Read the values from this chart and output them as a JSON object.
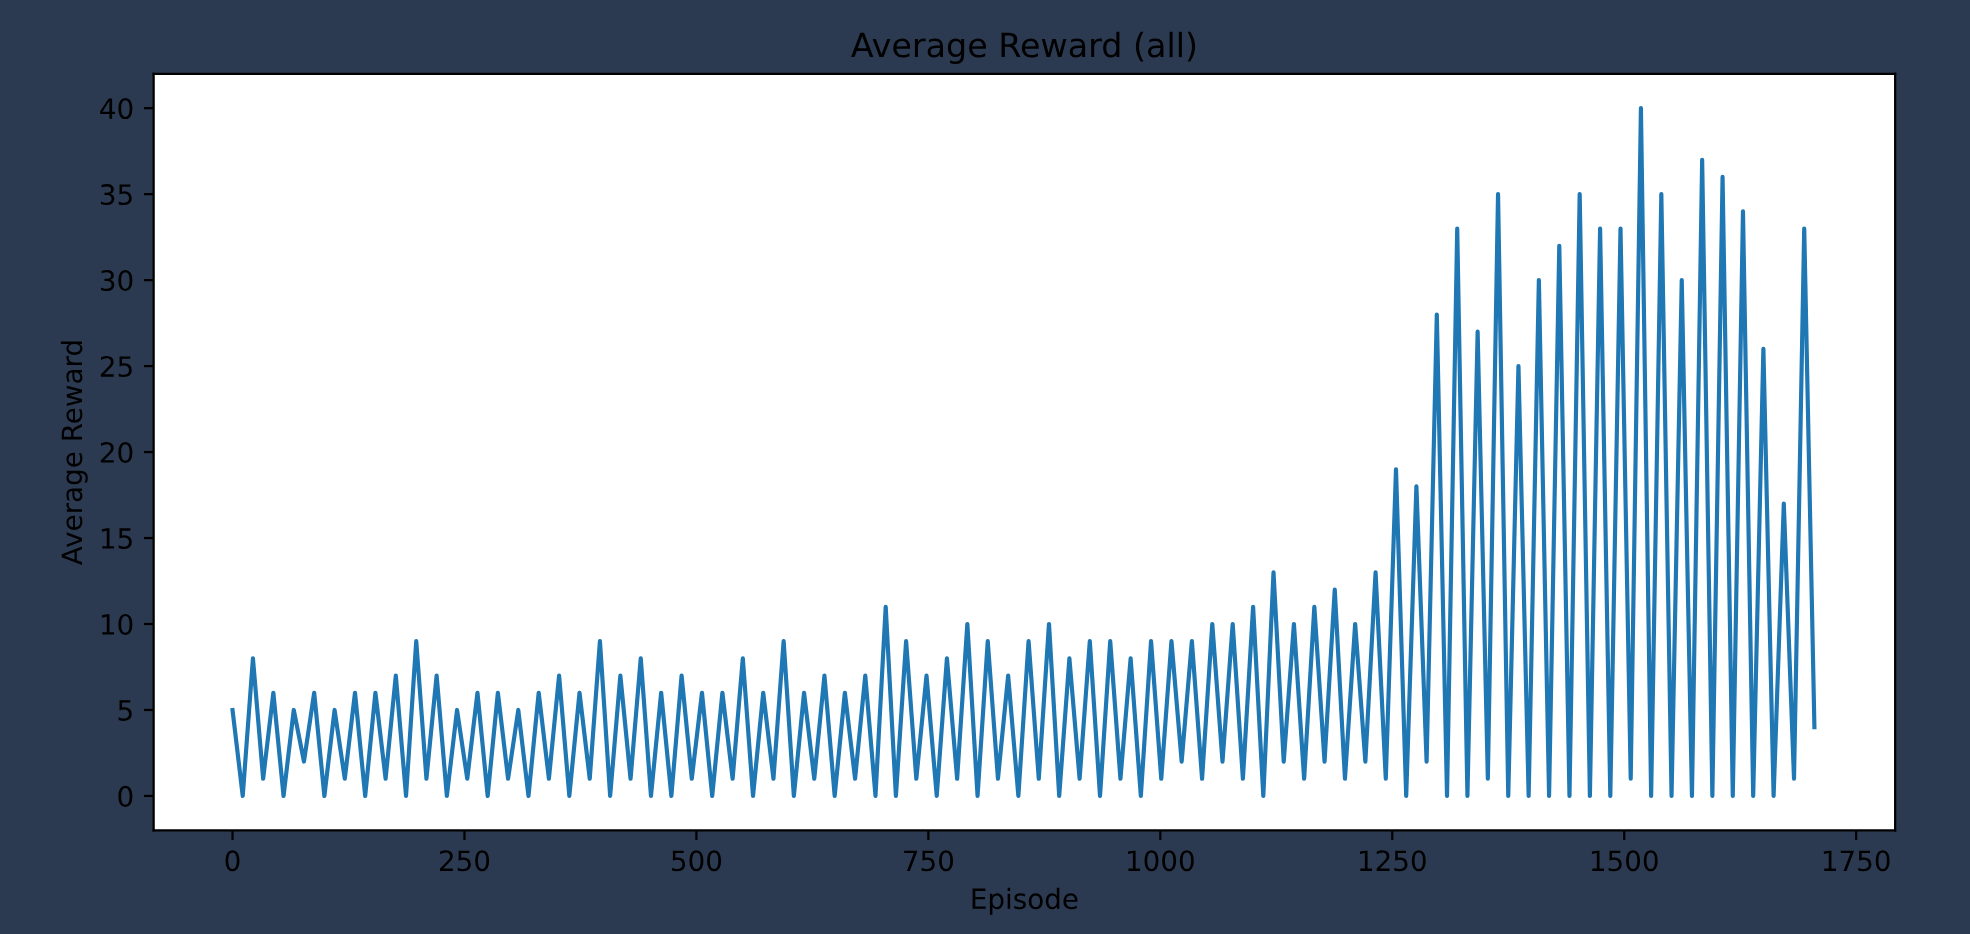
{
  "chart_data": {
    "type": "line",
    "title": "Average Reward (all)",
    "xlabel": "Episode",
    "ylabel": "Average Reward",
    "xlim": [
      -85,
      1792
    ],
    "ylim": [
      -2,
      42
    ],
    "xticks": [
      0,
      250,
      500,
      750,
      1000,
      1250,
      1500,
      1750
    ],
    "yticks": [
      0,
      5,
      10,
      15,
      20,
      25,
      30,
      35,
      40
    ],
    "grid": false,
    "legend": false,
    "marker": "none",
    "line_style": "solid",
    "series": [
      {
        "color": "#1f77b4",
        "x": [
          0,
          11,
          22,
          33,
          44,
          55,
          66,
          77,
          88,
          99,
          110,
          121,
          132,
          143,
          154,
          165,
          176,
          187,
          198,
          209,
          220,
          231,
          242,
          253,
          264,
          275,
          286,
          297,
          308,
          319,
          330,
          341,
          352,
          363,
          374,
          385,
          396,
          407,
          418,
          429,
          440,
          451,
          462,
          473,
          484,
          495,
          506,
          517,
          528,
          539,
          550,
          561,
          572,
          583,
          594,
          605,
          616,
          627,
          638,
          649,
          660,
          671,
          682,
          693,
          704,
          715,
          726,
          737,
          748,
          759,
          770,
          781,
          792,
          803,
          814,
          825,
          836,
          847,
          858,
          869,
          880,
          891,
          902,
          913,
          924,
          935,
          946,
          957,
          968,
          979,
          990,
          1001,
          1012,
          1023,
          1034,
          1045,
          1056,
          1067,
          1078,
          1089,
          1100,
          1111,
          1122,
          1133,
          1144,
          1155,
          1166,
          1177,
          1188,
          1199,
          1210,
          1221,
          1232,
          1243,
          1254,
          1265,
          1276,
          1287,
          1298,
          1309,
          1320,
          1331,
          1342,
          1353,
          1364,
          1375,
          1386,
          1397,
          1408,
          1419,
          1430,
          1441,
          1452,
          1463,
          1474,
          1485,
          1496,
          1507,
          1518,
          1529,
          1540,
          1551,
          1562,
          1573,
          1584,
          1595,
          1606,
          1617,
          1628,
          1639,
          1650,
          1661,
          1672,
          1683,
          1694,
          1705
        ],
        "values": [
          5,
          0,
          8,
          1,
          6,
          0,
          5,
          2,
          6,
          0,
          5,
          1,
          6,
          0,
          6,
          1,
          7,
          0,
          9,
          1,
          7,
          0,
          5,
          1,
          6,
          0,
          6,
          1,
          5,
          0,
          6,
          1,
          7,
          0,
          6,
          1,
          9,
          0,
          7,
          1,
          8,
          0,
          6,
          0,
          7,
          1,
          6,
          0,
          6,
          1,
          8,
          0,
          6,
          1,
          9,
          0,
          6,
          1,
          7,
          0,
          6,
          1,
          7,
          0,
          11,
          0,
          9,
          1,
          7,
          0,
          8,
          1,
          10,
          0,
          9,
          1,
          7,
          0,
          9,
          1,
          10,
          0,
          8,
          1,
          9,
          0,
          9,
          1,
          8,
          0,
          9,
          1,
          9,
          2,
          9,
          1,
          10,
          2,
          10,
          1,
          11,
          0,
          13,
          2,
          10,
          1,
          11,
          2,
          12,
          1,
          10,
          2,
          13,
          1,
          19,
          0,
          18,
          2,
          28,
          0,
          33,
          0,
          27,
          1,
          35,
          0,
          25,
          0,
          30,
          0,
          32,
          0,
          35,
          0,
          33,
          0,
          33,
          1,
          40,
          0,
          35,
          0,
          30,
          0,
          37,
          0,
          36,
          0,
          34,
          0,
          26,
          0,
          17,
          1,
          33,
          4
        ]
      }
    ]
  }
}
